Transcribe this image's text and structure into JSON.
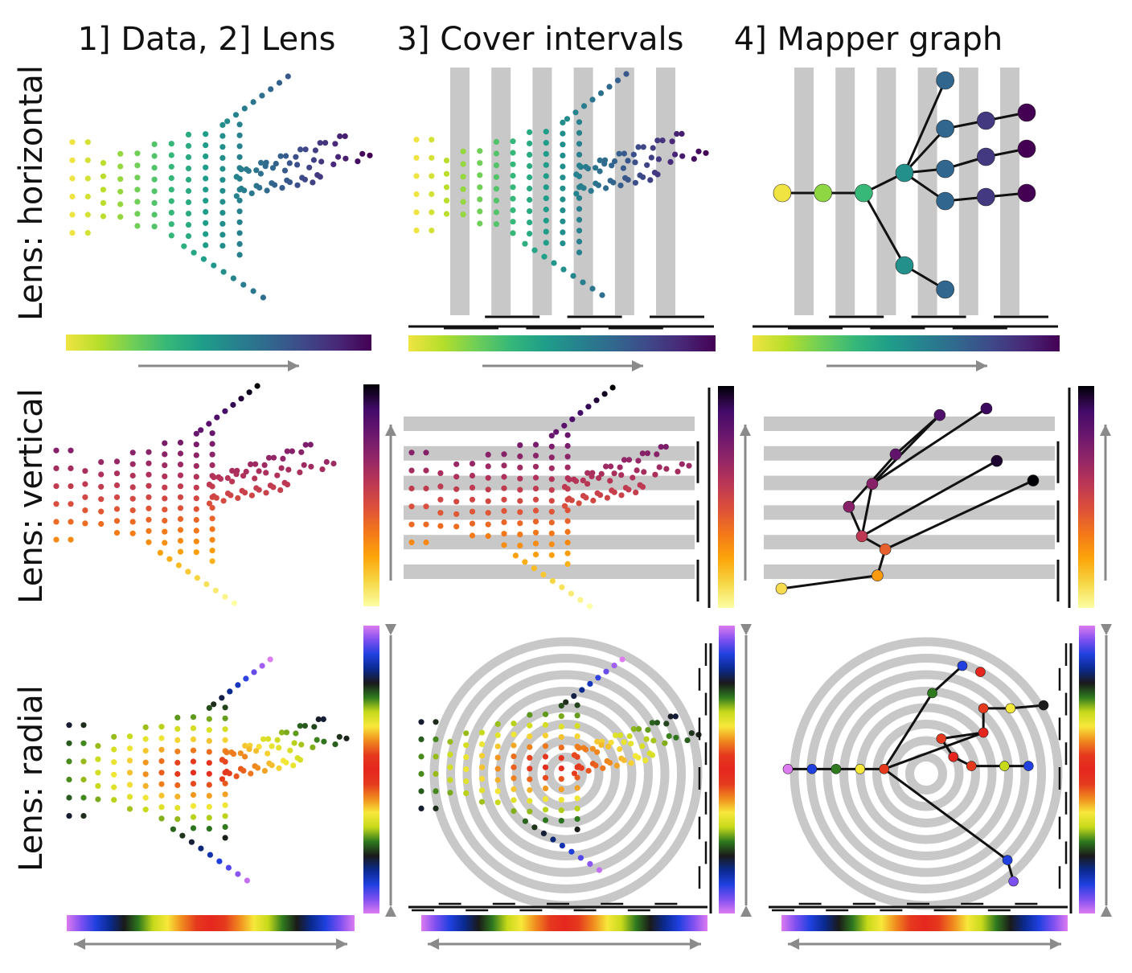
{
  "titles": {
    "col1": "1] Data, 2] Lens",
    "col2": "3] Cover intervals",
    "col3": "4] Mapper graph",
    "row1": "Lens: horizontal",
    "row2": "Lens: vertical",
    "row3": "Lens: radial"
  },
  "colors": {
    "band": "#c8c8c8",
    "edge": "#111111",
    "arrow": "#8a8a8a"
  },
  "colormaps": {
    "viridis": [
      "#f0e442",
      "#b5de2b",
      "#6ece58",
      "#35b779",
      "#1f9e89",
      "#26828e",
      "#31688e",
      "#3e4989",
      "#482878",
      "#440154"
    ],
    "inferno": [
      "#fcffa4",
      "#f6d746",
      "#fca50a",
      "#f37819",
      "#dd513a",
      "#bc3754",
      "#932667",
      "#6a176e",
      "#420a68",
      "#000004"
    ],
    "rainbow": [
      "#dd7bf0",
      "#7d4ff0",
      "#2040e0",
      "#0a2a90",
      "#1a1a1a",
      "#2f7a1e",
      "#c6d91a",
      "#f7e83a",
      "#f08a1e",
      "#e53a1e",
      "#e5261e",
      "#e53a1e",
      "#f08a1e",
      "#f7e83a",
      "#c6d91a",
      "#2f7a1e",
      "#1a1a1a",
      "#0a2a90",
      "#2040e0",
      "#7d4ff0",
      "#dd7bf0"
    ]
  },
  "lenses": [
    {
      "name": "horizontal",
      "colormap": "viridis",
      "intervals": 6
    },
    {
      "name": "vertical",
      "colormap": "inferno",
      "intervals": 6
    },
    {
      "name": "radial",
      "colormap": "rainbow",
      "intervals": 10
    }
  ],
  "mapper_graphs": {
    "horizontal": {
      "nodes": [
        [
          0.0,
          0.0
        ],
        [
          1.0,
          0.0
        ],
        [
          2.0,
          0.0
        ],
        [
          3.0,
          0.5
        ],
        [
          4.0,
          2.8
        ],
        [
          4.0,
          1.6
        ],
        [
          4.0,
          0.6
        ],
        [
          4.0,
          -0.2
        ],
        [
          5.0,
          1.8
        ],
        [
          5.0,
          0.9
        ],
        [
          5.0,
          -0.1
        ],
        [
          6.0,
          2.0
        ],
        [
          6.0,
          1.1
        ],
        [
          6.0,
          0.0
        ],
        [
          3.0,
          -1.8
        ],
        [
          4.0,
          -2.4
        ]
      ],
      "node_values": [
        0.0,
        0.17,
        0.33,
        0.5,
        0.67,
        0.67,
        0.67,
        0.67,
        0.83,
        0.83,
        0.83,
        1.0,
        1.0,
        1.0,
        0.5,
        0.67
      ],
      "edges": [
        [
          0,
          1
        ],
        [
          1,
          2
        ],
        [
          2,
          3
        ],
        [
          3,
          4
        ],
        [
          3,
          5
        ],
        [
          3,
          6
        ],
        [
          3,
          7
        ],
        [
          5,
          8
        ],
        [
          6,
          9
        ],
        [
          7,
          10
        ],
        [
          8,
          11
        ],
        [
          9,
          12
        ],
        [
          10,
          13
        ],
        [
          2,
          14
        ],
        [
          14,
          15
        ]
      ]
    },
    "vertical": {
      "nodes": [
        [
          0.0,
          0.0
        ],
        [
          3.7,
          0.4
        ],
        [
          4.0,
          1.2
        ],
        [
          3.1,
          1.6
        ],
        [
          2.6,
          2.5
        ],
        [
          3.5,
          3.2
        ],
        [
          4.4,
          4.1
        ],
        [
          6.1,
          5.3
        ],
        [
          7.9,
          5.5
        ],
        [
          8.3,
          3.9
        ],
        [
          9.7,
          3.3
        ]
      ],
      "node_values": [
        0.1,
        0.25,
        0.4,
        0.55,
        0.7,
        0.7,
        0.8,
        0.85,
        0.9,
        0.95,
        1.0
      ],
      "edges": [
        [
          0,
          1
        ],
        [
          1,
          2
        ],
        [
          2,
          3
        ],
        [
          3,
          4
        ],
        [
          3,
          5
        ],
        [
          4,
          6
        ],
        [
          5,
          7
        ],
        [
          6,
          7
        ],
        [
          3,
          9
        ],
        [
          2,
          10
        ],
        [
          5,
          8
        ]
      ]
    },
    "radial": {
      "nodes": [
        [
          0.0,
          0.0
        ],
        [
          0.8,
          0.0
        ],
        [
          1.6,
          0.0
        ],
        [
          2.4,
          0.0
        ],
        [
          3.2,
          0.0
        ],
        [
          4.8,
          2.5
        ],
        [
          5.8,
          3.4
        ],
        [
          6.5,
          1.2
        ],
        [
          5.1,
          1.0
        ],
        [
          5.5,
          0.4
        ],
        [
          6.1,
          0.1
        ],
        [
          7.2,
          0.1
        ],
        [
          8.0,
          0.1
        ],
        [
          6.5,
          2.0
        ],
        [
          7.4,
          2.0
        ],
        [
          8.5,
          2.1
        ],
        [
          7.3,
          -3.0
        ],
        [
          7.5,
          -3.7
        ],
        [
          6.4,
          3.2
        ]
      ],
      "node_values": [
        0.0,
        0.1,
        0.25,
        0.35,
        0.45,
        0.25,
        0.1,
        0.5,
        0.45,
        0.5,
        0.45,
        0.3,
        0.1,
        0.45,
        0.35,
        0.2,
        0.1,
        0.05,
        0.5
      ],
      "edges": [
        [
          0,
          1
        ],
        [
          1,
          2
        ],
        [
          2,
          3
        ],
        [
          3,
          4
        ],
        [
          4,
          5
        ],
        [
          5,
          6
        ],
        [
          4,
          7
        ],
        [
          7,
          8
        ],
        [
          8,
          9
        ],
        [
          9,
          10
        ],
        [
          10,
          11
        ],
        [
          11,
          12
        ],
        [
          7,
          13
        ],
        [
          13,
          14
        ],
        [
          14,
          15
        ],
        [
          4,
          16
        ],
        [
          16,
          17
        ]
      ]
    }
  }
}
